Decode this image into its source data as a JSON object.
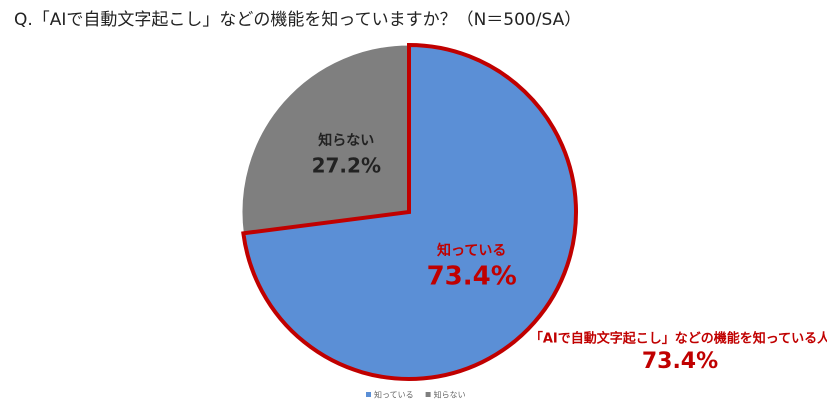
{
  "chart_data": {
    "type": "pie",
    "title": "Q.「AIで自動文字起こし」などの機能を知っていますか？（N＝500/SA）",
    "categories": [
      "知っている",
      "知らない"
    ],
    "values": [
      73.4,
      27.2
    ],
    "value_labels": [
      "73.4%",
      "27.2%"
    ],
    "colors": [
      "#5b8fd6",
      "#7f7f7f"
    ],
    "highlight_color": "#c00000",
    "label_colors": [
      "#c00000",
      "#222222"
    ],
    "annotation": {
      "text": "「AIで自動文字起こし」などの機能を知っている人",
      "value": "73.4%"
    },
    "legend": "bottom"
  }
}
